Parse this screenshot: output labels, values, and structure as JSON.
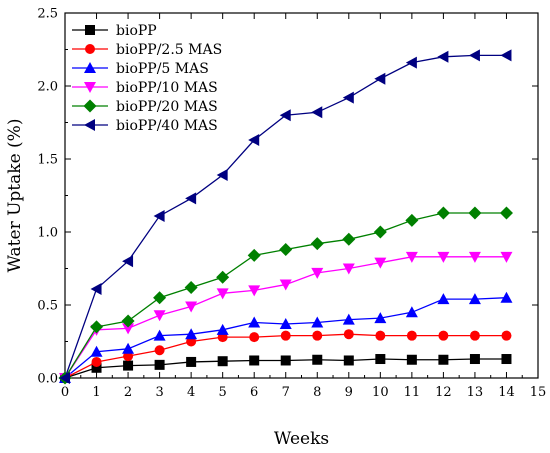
{
  "chart_data": {
    "type": "line",
    "title": "",
    "xlabel": "Weeks",
    "ylabel": "Water Uptake (%)",
    "xlim": [
      0,
      15
    ],
    "ylim": [
      0,
      2.5
    ],
    "xticks": [
      0,
      1,
      2,
      3,
      4,
      5,
      6,
      7,
      8,
      9,
      10,
      11,
      12,
      13,
      14,
      15
    ],
    "xtick_labels": [
      "0",
      "1",
      "2",
      "3",
      "4",
      "5",
      "6",
      "7",
      "8",
      "9",
      "10",
      "11",
      "12",
      "13",
      "14",
      "15"
    ],
    "yticks": [
      0,
      0.5,
      1.0,
      1.5,
      2.0,
      2.5
    ],
    "ytick_labels": [
      "0.0",
      "0.5",
      "1.0",
      "1.5",
      "2.0",
      "2.5"
    ],
    "grid": false,
    "legend_position": "top-left",
    "x": [
      0,
      1,
      2,
      3,
      4,
      5,
      6,
      7,
      8,
      9,
      10,
      11,
      12,
      13,
      14
    ],
    "series": [
      {
        "name": "bioPP",
        "color": "#000000",
        "marker": "square",
        "values": [
          0,
          0.07,
          0.085,
          0.09,
          0.11,
          0.115,
          0.12,
          0.12,
          0.125,
          0.12,
          0.13,
          0.125,
          0.125,
          0.13,
          0.13
        ]
      },
      {
        "name": "bioPP/2.5 MAS",
        "color": "#ff0000",
        "marker": "circle",
        "values": [
          0,
          0.11,
          0.15,
          0.19,
          0.25,
          0.28,
          0.28,
          0.29,
          0.29,
          0.3,
          0.29,
          0.29,
          0.29,
          0.29,
          0.29
        ]
      },
      {
        "name": "bioPP/5 MAS",
        "color": "#0000ff",
        "marker": "triangle-up",
        "values": [
          0,
          0.18,
          0.2,
          0.29,
          0.3,
          0.33,
          0.38,
          0.37,
          0.38,
          0.4,
          0.41,
          0.45,
          0.54,
          0.54,
          0.55
        ]
      },
      {
        "name": "bioPP/10 MAS",
        "color": "#ff00ff",
        "marker": "triangle-down",
        "values": [
          0,
          0.33,
          0.34,
          0.43,
          0.49,
          0.58,
          0.6,
          0.64,
          0.72,
          0.75,
          0.79,
          0.83,
          0.83,
          0.83,
          0.83
        ]
      },
      {
        "name": "bioPP/20 MAS",
        "color": "#008000",
        "marker": "diamond",
        "values": [
          0,
          0.35,
          0.39,
          0.55,
          0.62,
          0.69,
          0.84,
          0.88,
          0.92,
          0.95,
          1.0,
          1.08,
          1.13,
          1.13,
          1.13
        ]
      },
      {
        "name": "bioPP/40 MAS",
        "color": "#000080",
        "marker": "triangle-left",
        "values": [
          0,
          0.61,
          0.8,
          1.11,
          1.23,
          1.39,
          1.63,
          1.8,
          1.82,
          1.92,
          2.05,
          2.16,
          2.2,
          2.21,
          2.21
        ]
      }
    ]
  }
}
